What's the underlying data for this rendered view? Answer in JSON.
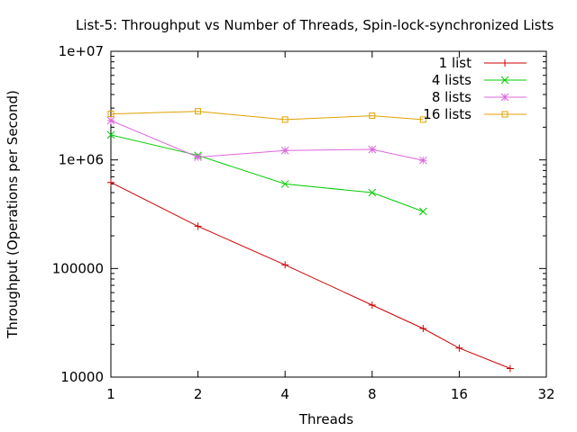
{
  "chart_data": {
    "type": "line",
    "title": "List-5: Throughput vs Number of Threads, Spin-lock-synchronized Lists",
    "xlabel": "Threads",
    "ylabel": "Throughput (Operations per Second)",
    "x_scale": "log2",
    "y_scale": "log10",
    "xlim": [
      1,
      32
    ],
    "ylim": [
      10000,
      10000000
    ],
    "x_ticks": [
      1,
      2,
      4,
      8,
      16,
      32
    ],
    "x_tick_labels": [
      "1",
      "2",
      "4",
      "8",
      "16",
      "32"
    ],
    "y_ticks": [
      10000,
      100000,
      1000000,
      10000000
    ],
    "y_tick_labels": [
      "10000",
      "100000",
      "1e+06",
      "1e+07"
    ],
    "legend_position": "top-right",
    "grid": false,
    "series": [
      {
        "name": "1 list",
        "color": "#cc0000",
        "marker": "plus",
        "points": [
          [
            1,
            620000
          ],
          [
            2,
            245000
          ],
          [
            4,
            108000
          ],
          [
            8,
            46000
          ],
          [
            12,
            28000
          ],
          [
            16,
            18500
          ],
          [
            24,
            12000
          ]
        ]
      },
      {
        "name": "4 lists",
        "color": "#00cc00",
        "marker": "cross",
        "points": [
          [
            1,
            1700000
          ],
          [
            2,
            1100000
          ],
          [
            4,
            600000
          ],
          [
            8,
            500000
          ],
          [
            12,
            335000
          ]
        ]
      },
      {
        "name": "8 lists",
        "color": "#dd66dd",
        "marker": "star",
        "points": [
          [
            1,
            2300000
          ],
          [
            2,
            1060000
          ],
          [
            4,
            1220000
          ],
          [
            8,
            1250000
          ],
          [
            12,
            990000
          ]
        ]
      },
      {
        "name": "16 lists",
        "color": "#e0a000",
        "marker": "square",
        "points": [
          [
            1,
            2650000
          ],
          [
            2,
            2800000
          ],
          [
            4,
            2350000
          ],
          [
            8,
            2550000
          ],
          [
            12,
            2350000
          ]
        ]
      }
    ]
  }
}
